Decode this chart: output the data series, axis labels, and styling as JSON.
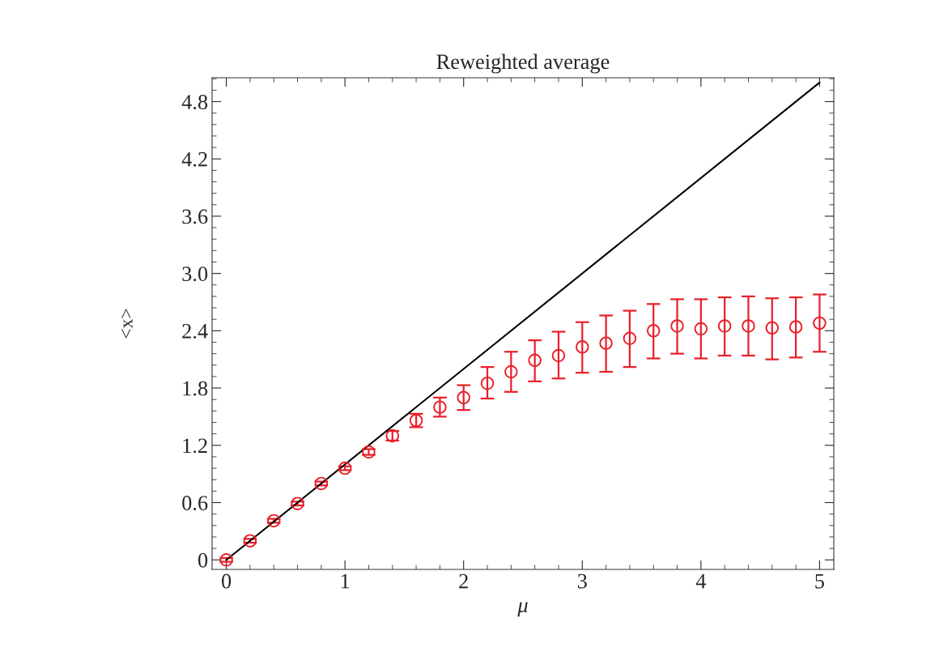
{
  "chart_data": {
    "type": "scatter",
    "title": "Reweighted average",
    "xlabel": "μ",
    "ylabel": "<x>",
    "x": [
      0,
      0.2,
      0.4,
      0.6,
      0.8,
      1.0,
      1.2,
      1.4,
      1.6,
      1.8,
      2.0,
      2.2,
      2.4,
      2.6,
      2.8,
      3.0,
      3.2,
      3.4,
      3.6,
      3.8,
      4.0,
      4.2,
      4.4,
      4.6,
      4.8,
      5.0
    ],
    "series": [
      {
        "color": "#e8202a",
        "marker": "circle",
        "values": [
          0,
          0.2,
          0.41,
          0.59,
          0.8,
          0.96,
          1.13,
          1.3,
          1.46,
          1.6,
          1.7,
          1.85,
          1.97,
          2.09,
          2.14,
          2.23,
          2.27,
          2.32,
          2.4,
          2.45,
          2.42,
          2.45,
          2.45,
          2.43,
          2.44,
          2.48
        ],
        "errors": [
          0.02,
          0.02,
          0.02,
          0.02,
          0.02,
          0.02,
          0.03,
          0.05,
          0.07,
          0.1,
          [
            1.57,
            1.83
          ],
          [
            1.69,
            2.02
          ],
          [
            1.76,
            2.18
          ],
          [
            1.87,
            2.3
          ],
          [
            1.9,
            2.39
          ],
          [
            1.96,
            2.49
          ],
          [
            1.97,
            2.56
          ],
          [
            2.02,
            2.61
          ],
          [
            2.11,
            2.68
          ],
          [
            2.16,
            2.73
          ],
          [
            2.11,
            2.73
          ],
          [
            2.14,
            2.75
          ],
          [
            2.14,
            2.76
          ],
          [
            2.1,
            2.74
          ],
          [
            2.12,
            2.75
          ],
          [
            2.18,
            2.78
          ]
        ]
      },
      {
        "type": "line",
        "color": "#000000",
        "marker": "none",
        "line_style": "solid",
        "x": [
          0,
          5
        ],
        "values": [
          0,
          5
        ]
      }
    ],
    "xlim": [
      -0.12,
      5.12
    ],
    "ylim": [
      -0.1,
      5.05
    ],
    "xticks": [
      0,
      1,
      2,
      3,
      4,
      5
    ],
    "yticks": [
      0,
      0.6,
      1.2,
      1.8,
      2.4,
      {
        "value": 3,
        "label": "3.0"
      },
      3.6,
      4.2,
      4.8
    ],
    "grid": false,
    "legend": false
  }
}
